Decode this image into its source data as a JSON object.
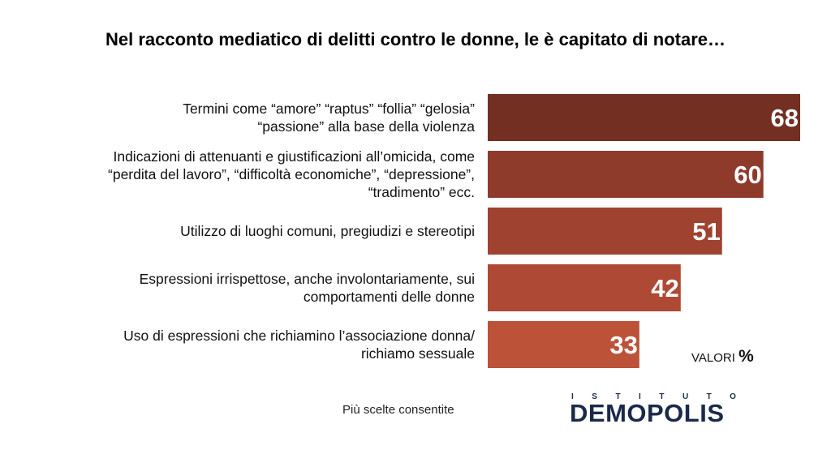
{
  "chart_data": {
    "type": "bar",
    "orientation": "horizontal",
    "title": "Nel racconto mediatico di delitti contro le donne, le è capitato di notare…",
    "categories": [
      "Termini come “amore” “raptus” “follia” “gelosia”\n“passione” alla base della violenza",
      "Indicazioni di attenuanti e giustificazioni all’omicida, come\n“perdita del lavoro”, “difficoltà economiche”, “depressione”,\n“tradimento” ecc.",
      "Utilizzo di luoghi comuni, pregiudizi e stereotipi",
      "Espressioni irrispettose, anche involontariamente, sui\ncomportamenti delle donne",
      "Uso di espressioni che richiamino l’associazione donna/\nrichiamo sessuale"
    ],
    "values": [
      68,
      60,
      51,
      42,
      33
    ],
    "colors": [
      "#722f22",
      "#8f3b2c",
      "#9f4230",
      "#ad4934",
      "#bc5339"
    ],
    "unit_note": "VALORI",
    "unit_symbol": "%",
    "note": "Più scelte consentite",
    "logo": {
      "top": "ISTITUTO",
      "name": "DEMOPOLIS"
    }
  }
}
